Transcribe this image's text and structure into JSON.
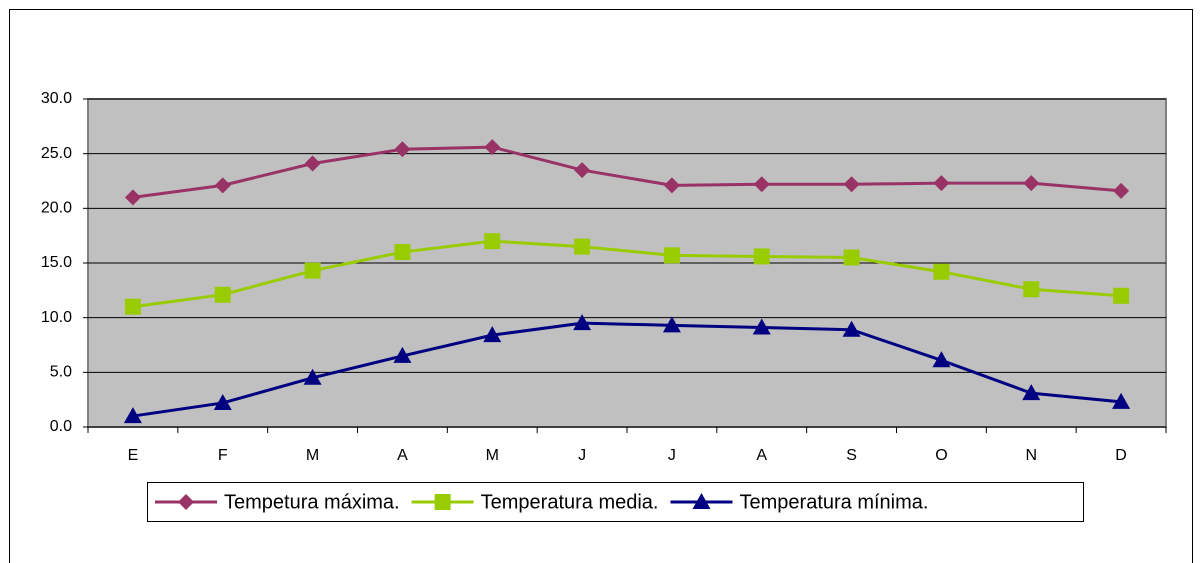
{
  "chart_data": {
    "type": "line",
    "categories": [
      "E",
      "F",
      "M",
      "A",
      "M",
      "J",
      "J",
      "A",
      "S",
      "O",
      "N",
      "D"
    ],
    "series": [
      {
        "name": "Tempetura máxima.",
        "color": "#993366",
        "marker": "diamond",
        "values": [
          21.0,
          22.1,
          24.1,
          25.4,
          25.6,
          23.5,
          22.1,
          22.2,
          22.2,
          22.3,
          22.3,
          21.6
        ]
      },
      {
        "name": "Temperatura media.",
        "color": "#99cc00",
        "marker": "square",
        "values": [
          11.0,
          12.1,
          14.3,
          16.0,
          17.0,
          16.5,
          15.7,
          15.6,
          15.5,
          14.2,
          12.6,
          12.0
        ]
      },
      {
        "name": "Temperatura mínima.",
        "color": "#000080",
        "marker": "triangle",
        "values": [
          1.0,
          2.2,
          4.5,
          6.5,
          8.4,
          9.5,
          9.3,
          9.1,
          8.9,
          6.1,
          3.1,
          2.3
        ]
      }
    ],
    "ylim": [
      0,
      30
    ],
    "yticks": [
      {
        "value": 0,
        "label": "0.0"
      },
      {
        "value": 5,
        "label": "5.0"
      },
      {
        "value": 10,
        "label": "10.0"
      },
      {
        "value": 15,
        "label": "15.0"
      },
      {
        "value": 20,
        "label": "20.0"
      },
      {
        "value": 25,
        "label": "25.0"
      },
      {
        "value": 30,
        "label": "30.0"
      }
    ],
    "grid": true,
    "background": "#c0c0c0",
    "legend": "bottom"
  }
}
